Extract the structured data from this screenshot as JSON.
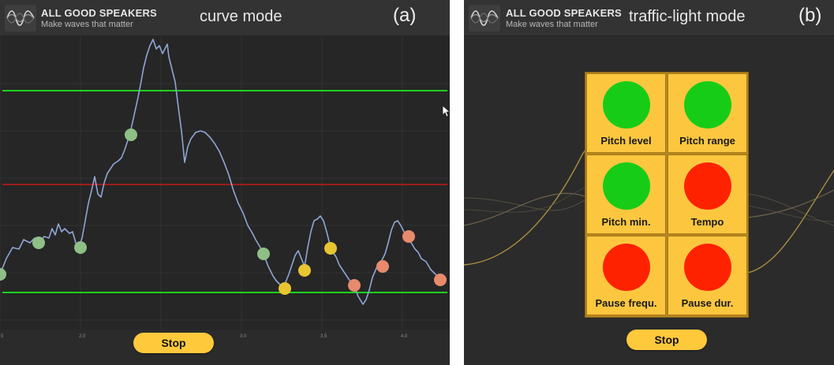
{
  "colors": {
    "green": "#1ed11e",
    "red": "#ff2200",
    "accent": "#ffc93c",
    "dot_green": "#8fbf86",
    "dot_yellow": "#e8c531",
    "dot_orange": "#e88a6c"
  },
  "curve_panel": {
    "brand": "ALL GOOD SPEAKERS",
    "tagline": "Make waves that matter",
    "title": "curve mode",
    "letter": "(a)",
    "stop_label": "Stop",
    "x_ticks": [
      "5",
      "2.0",
      "3.0",
      "3.5",
      "4.0"
    ]
  },
  "traffic_panel": {
    "brand": "ALL GOOD SPEAKERS",
    "tagline": "Make waves that matter",
    "title": "traffic-light mode",
    "letter": "(b)",
    "stop_label": "Stop",
    "tiles": [
      {
        "label": "Pitch level",
        "status": "green"
      },
      {
        "label": "Pitch range",
        "status": "green"
      },
      {
        "label": "Pitch min.",
        "status": "green"
      },
      {
        "label": "Tempo",
        "status": "red"
      },
      {
        "label": "Pause frequ.",
        "status": "red"
      },
      {
        "label": "Pause dur.",
        "status": "red"
      }
    ]
  }
}
